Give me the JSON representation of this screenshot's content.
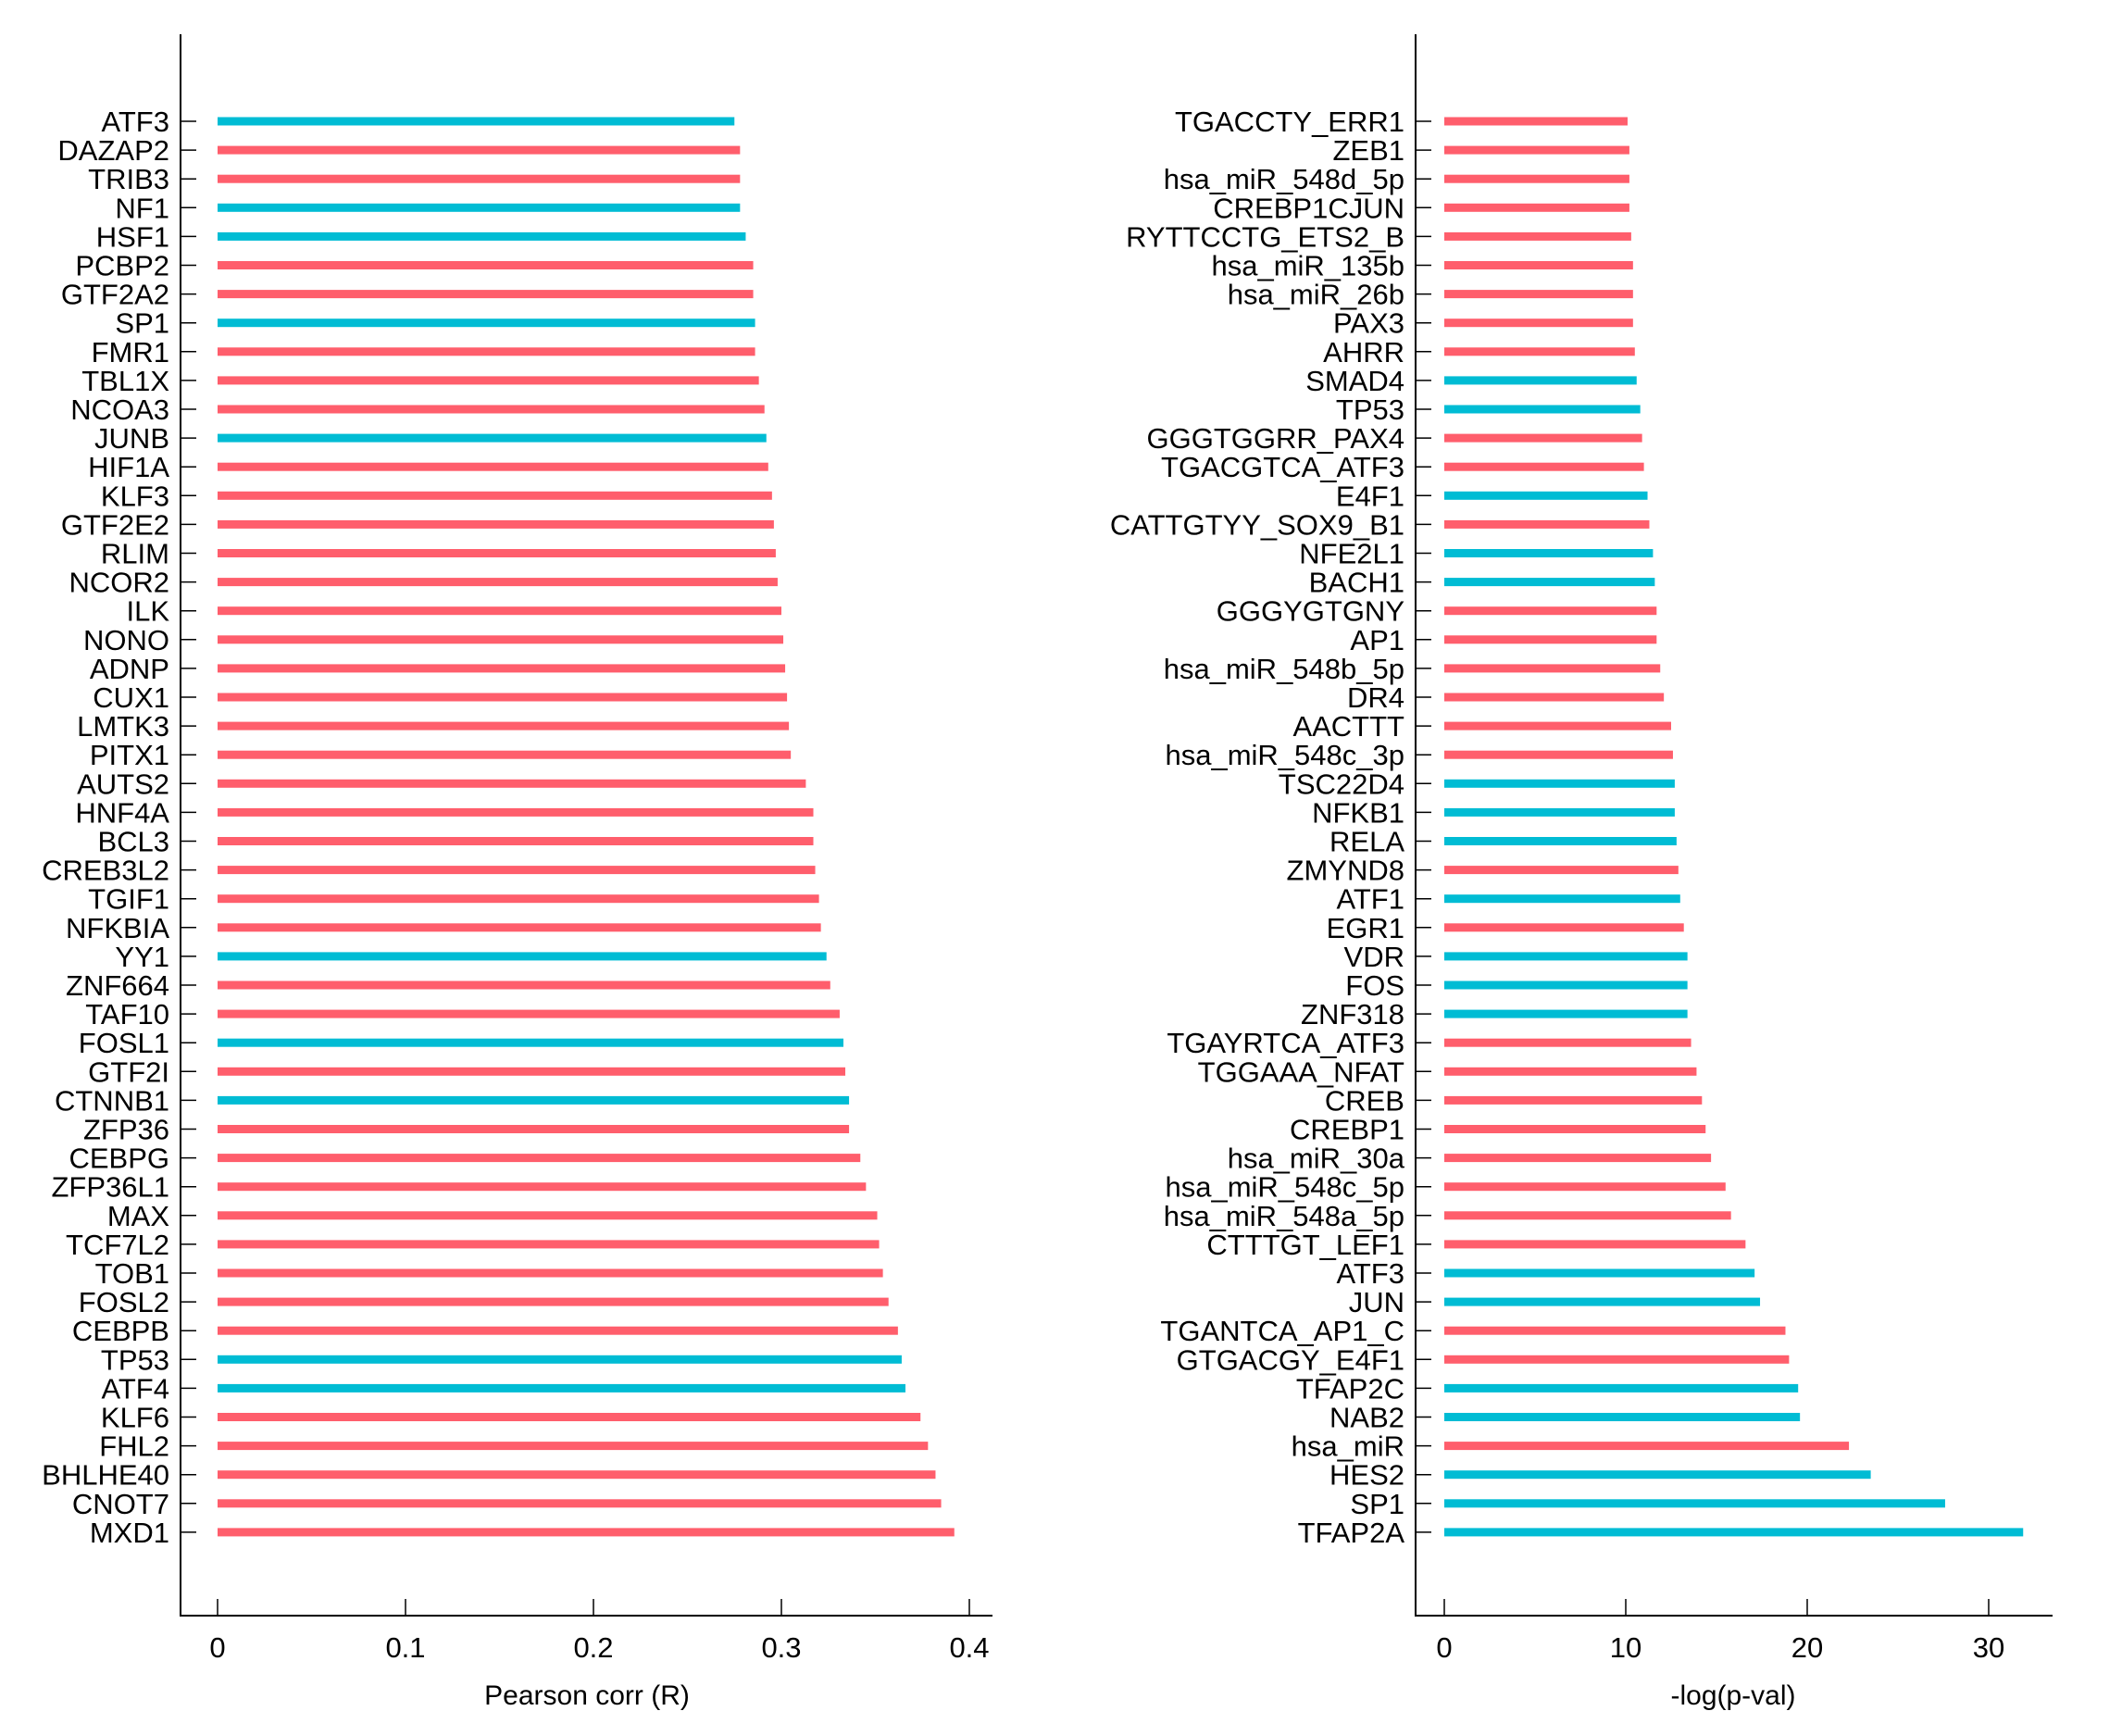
{
  "colors": {
    "up": "#ff5e6c",
    "down": "#00bcd4",
    "axis": "#000000"
  },
  "chart_data": [
    {
      "type": "bar",
      "orientation": "horizontal",
      "xlabel": "Pearson corr (R)",
      "ylabel": "",
      "xlim": [
        -0.019,
        0.41
      ],
      "xticks": [
        0,
        0.1,
        0.2,
        0.3,
        0.4
      ],
      "xtick_labels": [
        "0",
        "0.1",
        "0.2",
        "0.3",
        "0.4"
      ],
      "grid": false,
      "categories": [
        "ATF3",
        "DAZAP2",
        "TRIB3",
        "NF1",
        "HSF1",
        "PCBP2",
        "GTF2A2",
        "SP1",
        "FMR1",
        "TBL1X",
        "NCOA3",
        "JUNB",
        "HIF1A",
        "KLF3",
        "GTF2E2",
        "RLIM",
        "NCOR2",
        "ILK",
        "NONO",
        "ADNP",
        "CUX1",
        "LMTK3",
        "PITX1",
        "AUTS2",
        "HNF4A",
        "BCL3",
        "CREB3L2",
        "TGIF1",
        "NFKBIA",
        "YY1",
        "ZNF664",
        "TAF10",
        "FOSL1",
        "GTF2I",
        "CTNNB1",
        "ZFP36",
        "CEBPG",
        "ZFP36L1",
        "MAX",
        "TCF7L2",
        "TOB1",
        "FOSL2",
        "CEBPB",
        "TP53",
        "ATF4",
        "KLF6",
        "FHL2",
        "BHLHE40",
        "CNOT7",
        "MXD1"
      ],
      "values": [
        0.275,
        0.278,
        0.278,
        0.278,
        0.281,
        0.285,
        0.285,
        0.286,
        0.286,
        0.288,
        0.291,
        0.292,
        0.293,
        0.295,
        0.296,
        0.297,
        0.298,
        0.3,
        0.301,
        0.302,
        0.303,
        0.304,
        0.305,
        0.313,
        0.317,
        0.317,
        0.318,
        0.32,
        0.321,
        0.324,
        0.326,
        0.331,
        0.333,
        0.334,
        0.336,
        0.336,
        0.342,
        0.345,
        0.351,
        0.352,
        0.354,
        0.357,
        0.362,
        0.364,
        0.366,
        0.374,
        0.378,
        0.382,
        0.385,
        0.392
      ],
      "color_group": [
        "down",
        "up",
        "up",
        "down",
        "down",
        "up",
        "up",
        "down",
        "up",
        "up",
        "up",
        "down",
        "up",
        "up",
        "up",
        "up",
        "up",
        "up",
        "up",
        "up",
        "up",
        "up",
        "up",
        "up",
        "up",
        "up",
        "up",
        "up",
        "up",
        "down",
        "up",
        "up",
        "down",
        "up",
        "down",
        "up",
        "up",
        "up",
        "up",
        "up",
        "up",
        "up",
        "up",
        "down",
        "down",
        "up",
        "up",
        "up",
        "up",
        "up"
      ]
    },
    {
      "type": "bar",
      "orientation": "horizontal",
      "xlabel": "-log(p-val)",
      "ylabel": "",
      "xlim": [
        -1.6,
        33.6
      ],
      "xticks": [
        0,
        10,
        20,
        30
      ],
      "xtick_labels": [
        "0",
        "10",
        "20",
        "30"
      ],
      "grid": false,
      "categories": [
        "TGACCTY_ERR1",
        "ZEB1",
        "hsa_miR_548d_5p",
        "CREBP1CJUN",
        "RYTTCCTG_ETS2_B",
        "hsa_miR_135b",
        "hsa_miR_26b",
        "PAX3",
        "AHRR",
        "SMAD4",
        "TP53",
        "GGGTGGRR_PAX4",
        "TGACGTCA_ATF3",
        "E4F1",
        "CATTGTYY_SOX9_B1",
        "NFE2L1",
        "BACH1",
        "GGGYGTGNY",
        "AP1",
        "hsa_miR_548b_5p",
        "DR4",
        "AACTTT",
        "hsa_miR_548c_3p",
        "TSC22D4",
        "NFKB1",
        "RELA",
        "ZMYND8",
        "ATF1",
        "EGR1",
        "VDR",
        "FOS",
        "ZNF318",
        "TGAYRTCA_ATF3",
        "TGGAAA_NFAT",
        "CREB",
        "CREBP1",
        "hsa_miR_30a",
        "hsa_miR_548c_5p",
        "hsa_miR_548a_5p",
        "CTTTGT_LEF1",
        "ATF3",
        "JUN",
        "TGANTCA_AP1_C",
        "GTGACGY_E4F1",
        "TFAP2C",
        "NAB2",
        "hsa_miR",
        "HES2",
        "SP1",
        "TFAP2A"
      ],
      "values": [
        10.1,
        10.2,
        10.2,
        10.2,
        10.3,
        10.4,
        10.4,
        10.4,
        10.5,
        10.6,
        10.8,
        10.9,
        11.0,
        11.2,
        11.3,
        11.5,
        11.6,
        11.7,
        11.7,
        11.9,
        12.1,
        12.5,
        12.6,
        12.7,
        12.7,
        12.8,
        12.9,
        13.0,
        13.2,
        13.4,
        13.4,
        13.4,
        13.6,
        13.9,
        14.2,
        14.4,
        14.7,
        15.5,
        15.8,
        16.6,
        17.1,
        17.4,
        18.8,
        19.0,
        19.5,
        19.6,
        22.3,
        23.5,
        27.6,
        31.9
      ],
      "color_group": [
        "up",
        "up",
        "up",
        "up",
        "up",
        "up",
        "up",
        "up",
        "up",
        "down",
        "down",
        "up",
        "up",
        "down",
        "up",
        "down",
        "down",
        "up",
        "up",
        "up",
        "up",
        "up",
        "up",
        "down",
        "down",
        "down",
        "up",
        "down",
        "up",
        "down",
        "down",
        "down",
        "up",
        "up",
        "up",
        "up",
        "up",
        "up",
        "up",
        "up",
        "down",
        "down",
        "up",
        "up",
        "down",
        "down",
        "up",
        "down",
        "down",
        "down"
      ]
    }
  ]
}
